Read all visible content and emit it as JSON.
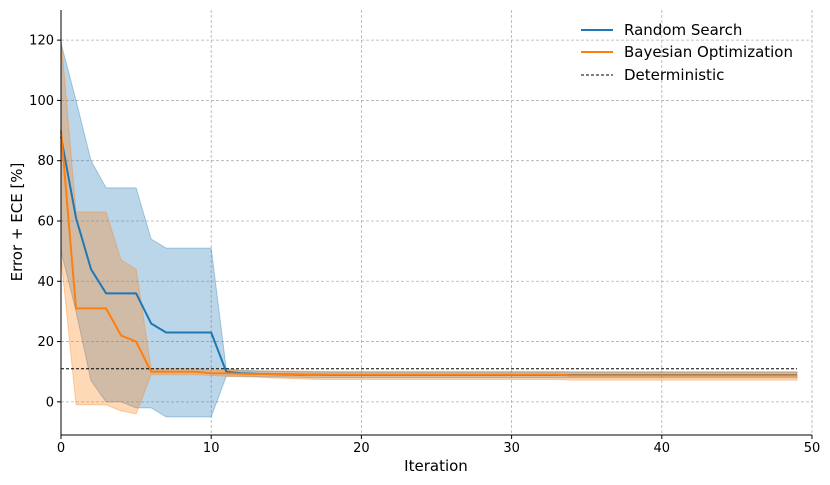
{
  "chart_data": {
    "type": "line",
    "xlabel": "Iteration",
    "ylabel": "Error + ECE [%]",
    "xlim": [
      0,
      50
    ],
    "ylim": [
      -11,
      130
    ],
    "x_ticks": [
      0,
      10,
      20,
      30,
      40,
      50
    ],
    "y_ticks": [
      0,
      20,
      40,
      60,
      80,
      100,
      120
    ],
    "grid": true,
    "legend_position": "top-right",
    "series": [
      {
        "name": "Random Search",
        "style": "line-with-band",
        "color": "#1f77b4",
        "band_color": "#1f77b4",
        "x": [
          0,
          1,
          2,
          3,
          4,
          5,
          6,
          7,
          8,
          9,
          10,
          11,
          12,
          13,
          14,
          15,
          16,
          17,
          18,
          19,
          20,
          21,
          22,
          23,
          24,
          25,
          26,
          27,
          28,
          29,
          30,
          31,
          32,
          33,
          34,
          35,
          36,
          37,
          38,
          39,
          40,
          41,
          42,
          43,
          44,
          45,
          46,
          47,
          48,
          49
        ],
        "values": [
          88,
          61,
          44,
          36,
          36,
          36,
          26,
          23,
          23,
          23,
          23,
          10,
          9.5,
          9.3,
          9.2,
          9.1,
          9,
          9,
          8.9,
          8.9,
          8.9,
          8.9,
          8.9,
          8.9,
          8.9,
          8.9,
          8.9,
          8.9,
          8.9,
          8.9,
          8.9,
          8.9,
          8.9,
          8.9,
          8.9,
          8.9,
          8.9,
          8.9,
          8.9,
          8.9,
          8.9,
          8.9,
          8.9,
          8.9,
          8.9,
          8.9,
          8.9,
          8.9,
          8.9,
          8.9
        ],
        "lower": [
          50,
          30,
          7,
          0,
          0,
          -2,
          -2,
          -5,
          -5,
          -5,
          -5,
          8.5,
          8.5,
          8.4,
          8.3,
          8.2,
          8.1,
          8.0,
          8.0,
          8.0,
          8.0,
          8.0,
          8.0,
          8.0,
          8.0,
          8.0,
          8.0,
          8.0,
          8.0,
          8.0,
          8.0,
          8.0,
          8.0,
          8.0,
          8.0,
          8.0,
          8.0,
          8.0,
          8.0,
          8.0,
          8.0,
          8.0,
          8.0,
          8.0,
          8.0,
          8.0,
          8.0,
          8.0,
          8.0,
          8.0
        ],
        "upper": [
          119,
          100,
          80,
          71,
          71,
          71,
          54,
          51,
          51,
          51,
          51,
          11,
          10.5,
          10.3,
          10.2,
          10.1,
          10,
          10,
          9.9,
          9.9,
          9.9,
          9.9,
          9.9,
          9.9,
          9.9,
          9.9,
          9.9,
          9.9,
          9.9,
          9.9,
          9.9,
          9.9,
          9.9,
          9.9,
          9.9,
          9.9,
          9.9,
          9.9,
          9.9,
          9.9,
          9.9,
          9.9,
          9.9,
          9.9,
          9.9,
          9.9,
          9.9,
          9.9,
          9.9,
          9.9
        ]
      },
      {
        "name": "Bayesian Optimization",
        "style": "line-with-band",
        "color": "#ff7f0e",
        "band_color": "#ff7f0e",
        "x": [
          0,
          1,
          2,
          3,
          4,
          5,
          6,
          7,
          8,
          9,
          10,
          11,
          12,
          13,
          14,
          15,
          16,
          17,
          18,
          19,
          20,
          21,
          22,
          23,
          24,
          25,
          26,
          27,
          28,
          29,
          30,
          31,
          32,
          33,
          34,
          35,
          36,
          37,
          38,
          39,
          40,
          41,
          42,
          43,
          44,
          45,
          46,
          47,
          48,
          49
        ],
        "values": [
          90,
          31,
          31,
          31,
          22,
          20,
          10,
          10,
          10,
          10,
          9.5,
          9.5,
          9.3,
          9.2,
          9.2,
          9.2,
          9.1,
          9.0,
          9.0,
          9.0,
          9.0,
          9.0,
          9.0,
          9.0,
          9.0,
          9.0,
          9.0,
          9.0,
          9.0,
          9.0,
          9.0,
          9.0,
          9.0,
          9.0,
          8.8,
          8.8,
          8.8,
          8.8,
          8.8,
          8.8,
          8.8,
          8.8,
          8.8,
          8.8,
          8.8,
          8.8,
          8.8,
          8.8,
          8.8,
          8.8
        ],
        "lower": [
          48,
          -1,
          -1,
          -1,
          -3,
          -4,
          9,
          9,
          9,
          9,
          8.8,
          8.5,
          8.3,
          8.2,
          7.9,
          7.8,
          7.6,
          7.4,
          7.4,
          7.4,
          7.4,
          7.4,
          7.4,
          7.4,
          7.4,
          7.4,
          7.4,
          7.4,
          7.4,
          7.4,
          7.4,
          7.4,
          7.4,
          7.4,
          7.2,
          7.2,
          7.2,
          7.2,
          7.2,
          7.2,
          7.2,
          7.2,
          7.2,
          7.2,
          7.2,
          7.2,
          7.2,
          7.2,
          7.2,
          7.2
        ],
        "upper": [
          121,
          63,
          63,
          63,
          47,
          44,
          11,
          11,
          11,
          11,
          10.5,
          10.5,
          10.3,
          10.2,
          10.2,
          10.2,
          10.2,
          10.1,
          10.1,
          10.1,
          10.1,
          10.1,
          10.1,
          10.1,
          10.1,
          10.1,
          10.1,
          10.1,
          10.1,
          10.1,
          10.1,
          10.1,
          10.1,
          10.1,
          10.0,
          10.0,
          10.0,
          10.0,
          10.0,
          10.0,
          10.0,
          10.0,
          10.0,
          10.0,
          10.0,
          10.0,
          10.0,
          10.0,
          10.0,
          10.0
        ]
      },
      {
        "name": "Deterministic",
        "style": "dashed-horizontal",
        "color": "#000000",
        "x": [
          0,
          49
        ],
        "values": [
          11,
          11
        ]
      }
    ]
  }
}
